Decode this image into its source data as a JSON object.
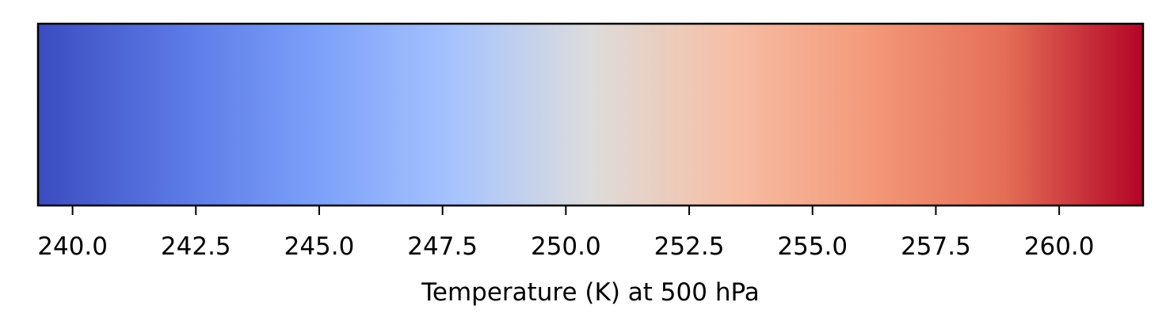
{
  "chart_data": {
    "type": "colorbar",
    "orientation": "horizontal",
    "colormap": "coolwarm",
    "xlabel": "Temperature (K) at 500 hPa",
    "xlim": [
      239.3,
      261.7
    ],
    "ticks": [
      240.0,
      242.5,
      245.0,
      247.5,
      250.0,
      252.5,
      255.0,
      257.5,
      260.0
    ],
    "tick_labels": [
      "240.0",
      "242.5",
      "245.0",
      "247.5",
      "250.0",
      "252.5",
      "255.0",
      "257.5",
      "260.0"
    ],
    "color_stops": [
      {
        "value": 239.3,
        "color": "#3b4cc0"
      },
      {
        "value": 242.1,
        "color": "#5a78e4"
      },
      {
        "value": 244.9,
        "color": "#7b9ff9"
      },
      {
        "value": 247.7,
        "color": "#a6c3fe"
      },
      {
        "value": 250.5,
        "color": "#dddcdc"
      },
      {
        "value": 253.3,
        "color": "#f6bfa6"
      },
      {
        "value": 256.1,
        "color": "#f49a7b"
      },
      {
        "value": 258.9,
        "color": "#e46e56"
      },
      {
        "value": 261.7,
        "color": "#b40426"
      }
    ]
  }
}
